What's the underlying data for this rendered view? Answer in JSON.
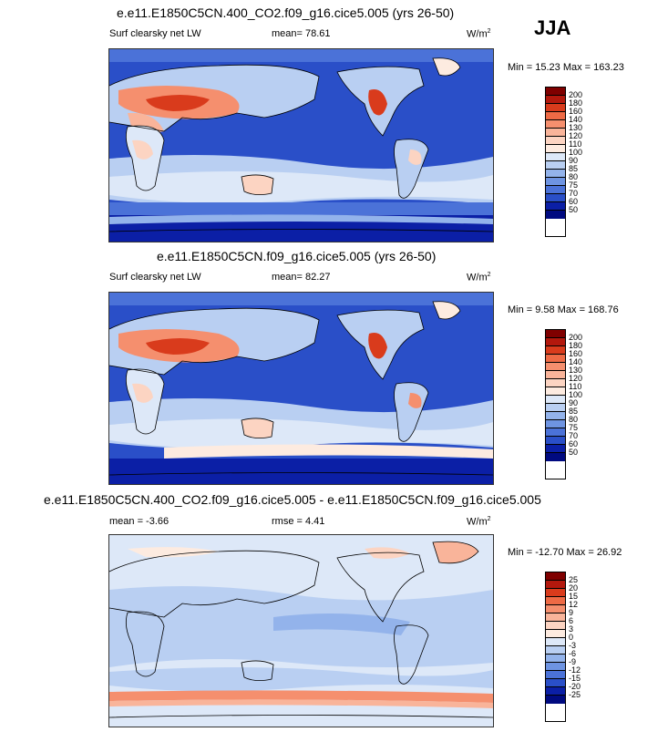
{
  "season": "JJA",
  "panels": [
    {
      "title": "e.e11.E1850C5CN.400_CO2.f09_g16.cice5.005 (yrs 26-50)",
      "left_label": "Surf clearsky net LW",
      "mean_label": "mean=",
      "mean_value": "78.61",
      "units": "W/m",
      "units_exp": "2",
      "minmax": "Min =  15.23 Max = 163.23",
      "colorbar_ticks": [
        "200",
        "180",
        "160",
        "140",
        "130",
        "120",
        "110",
        "100",
        "90",
        "85",
        "80",
        "75",
        "70",
        "60",
        "50"
      ]
    },
    {
      "title": "e.e11.E1850C5CN.f09_g16.cice5.005 (yrs 26-50)",
      "left_label": "Surf clearsky net LW",
      "mean_label": "mean=",
      "mean_value": "82.27",
      "units": "W/m",
      "units_exp": "2",
      "minmax": "Min =   9.58 Max = 168.76",
      "colorbar_ticks": [
        "200",
        "180",
        "160",
        "140",
        "130",
        "120",
        "110",
        "100",
        "90",
        "85",
        "80",
        "75",
        "70",
        "60",
        "50"
      ]
    },
    {
      "title": "e.e11.E1850C5CN.400_CO2.f09_g16.cice5.005 - e.e11.E1850C5CN.f09_g16.cice5.005",
      "left_label": "mean =  -3.66",
      "rmse_label": "rmse =  4.41",
      "units": "W/m",
      "units_exp": "2",
      "minmax": "Min = -12.70 Max =  26.92",
      "colorbar_ticks": [
        "25",
        "20",
        "15",
        "12",
        "9",
        "6",
        "3",
        "0",
        "-3",
        "-6",
        "-9",
        "-12",
        "-15",
        "-20",
        "-25"
      ]
    }
  ],
  "colors": {
    "ramp": [
      "#7f0000",
      "#b3180d",
      "#d93b1c",
      "#ee6a45",
      "#f58f6e",
      "#f9b49a",
      "#fcd4c2",
      "#fdebe0",
      "#dde8f8",
      "#b9cff2",
      "#93b3eb",
      "#6e94e2",
      "#4b72d8",
      "#2a4fc8",
      "#0b1fa6",
      "#000a80"
    ],
    "land_line": "#000000"
  }
}
